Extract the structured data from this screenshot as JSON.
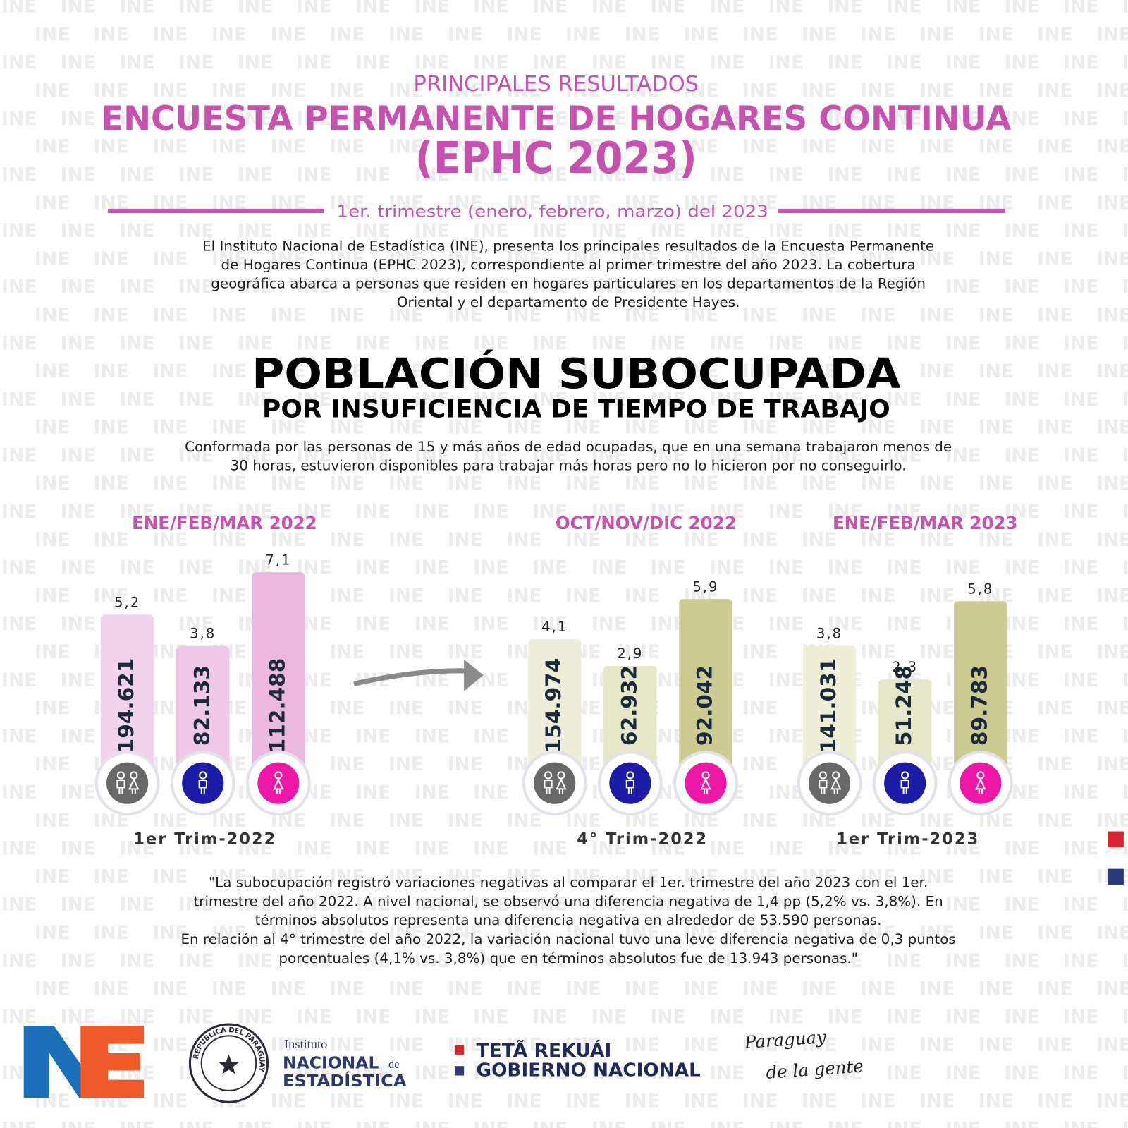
{
  "watermark": "INE",
  "header": {
    "kicker": "PRINCIPALES RESULTADOS",
    "title": "ENCUESTA PERMANENTE DE HOGARES CONTINUA",
    "title_2": "(EPHC 2023)",
    "period": "1er. trimestre  (enero, febrero, marzo) del 2023"
  },
  "intro": [
    "El Instituto Nacional de Estadística (INE), presenta los principales resultados de la Encuesta Permanente",
    "de Hogares Continua (EPHC 2023), correspondiente al primer trimestre del año 2023.  La cobertura",
    "geográfica abarca a personas que residen en hogares particulares en los departamentos de la Región",
    "Oriental y el departamento de Presidente Hayes."
  ],
  "section": {
    "title": "POBLACIÓN SUBOCUPADA",
    "subtitle": "POR INSUFICIENCIA DE TIEMPO DE TRABAJO",
    "definition": [
      "Conformada por las personas de 15 y más años de edad ocupadas, que en una semana trabajaron menos de",
      "30 horas, estuvieron disponibles para trabajar más horas pero no lo hicieron por no conseguirlo."
    ]
  },
  "chart_data": [
    {
      "type": "bar",
      "title": "ENE/FEB/MAR 2022",
      "x_label": "1er Trim-2022",
      "categories": [
        null,
        null,
        null
      ],
      "values": [
        5.2,
        3.8,
        7.1
      ],
      "value_labels": [
        "5,2",
        "3,8",
        "7,1"
      ],
      "count_labels": [
        "194.621",
        "82.133",
        "112.488"
      ],
      "colors": [
        "#f3d3ec",
        "#f0c9e8",
        "#ebb9e0"
      ]
    },
    {
      "type": "bar",
      "title": "OCT/NOV/DIC  2022",
      "x_label": "4° Trim-2022",
      "categories": [
        null,
        null,
        null
      ],
      "values": [
        4.1,
        2.9,
        5.9
      ],
      "value_labels": [
        "4,1",
        "2,9",
        "5,9"
      ],
      "count_labels": [
        "154.974",
        "62.932",
        "92.042"
      ],
      "colors": [
        "#efefd9",
        "#e6e6c8",
        "#cbcb92"
      ]
    },
    {
      "type": "bar",
      "title": "ENE/FEB/MAR 2023",
      "x_label": "1er Trim-2023",
      "categories": [
        null,
        null,
        null
      ],
      "values": [
        3.8,
        2.3,
        5.8
      ],
      "value_labels": [
        "3,8",
        "2,3",
        "5,8"
      ],
      "count_labels": [
        "141.031",
        "51.248",
        "89.783"
      ],
      "colors": [
        "#efefd9",
        "#e6e6c8",
        "#cbcb92"
      ]
    }
  ],
  "quote": [
    "\"La subocupación registró  variaciones negativas al comparar el 1er. trimestre del año 2023 con el 1er.",
    "trimestre del año 2022. A nivel nacional, se observó una diferencia negativa de 1,4 pp (5,2% vs. 3,8%). En",
    "términos absolutos representa una diferencia negativa en alrededor de 53.590 personas.",
    "En relación al 4° trimestre del año 2022, la variación nacional tuvo una leve  diferencia negativa de 0,3 puntos",
    "porcentuales (4,1% vs. 3,8%) que en términos absolutos fue de 13.943 personas.\""
  ],
  "footer": {
    "seal_text": "REPUBLICA DEL PARAGUAY",
    "ine_1": "Instituto",
    "ine_2": "NACIONAL",
    "ine_de": "de",
    "ine_3": "ESTADÍSTICA",
    "gov_1": "TETÃ REKUÁI",
    "gov_2": "GOBIERNO NACIONAL",
    "slogan_1": "Paraguay",
    "slogan_2": "de la gente"
  }
}
